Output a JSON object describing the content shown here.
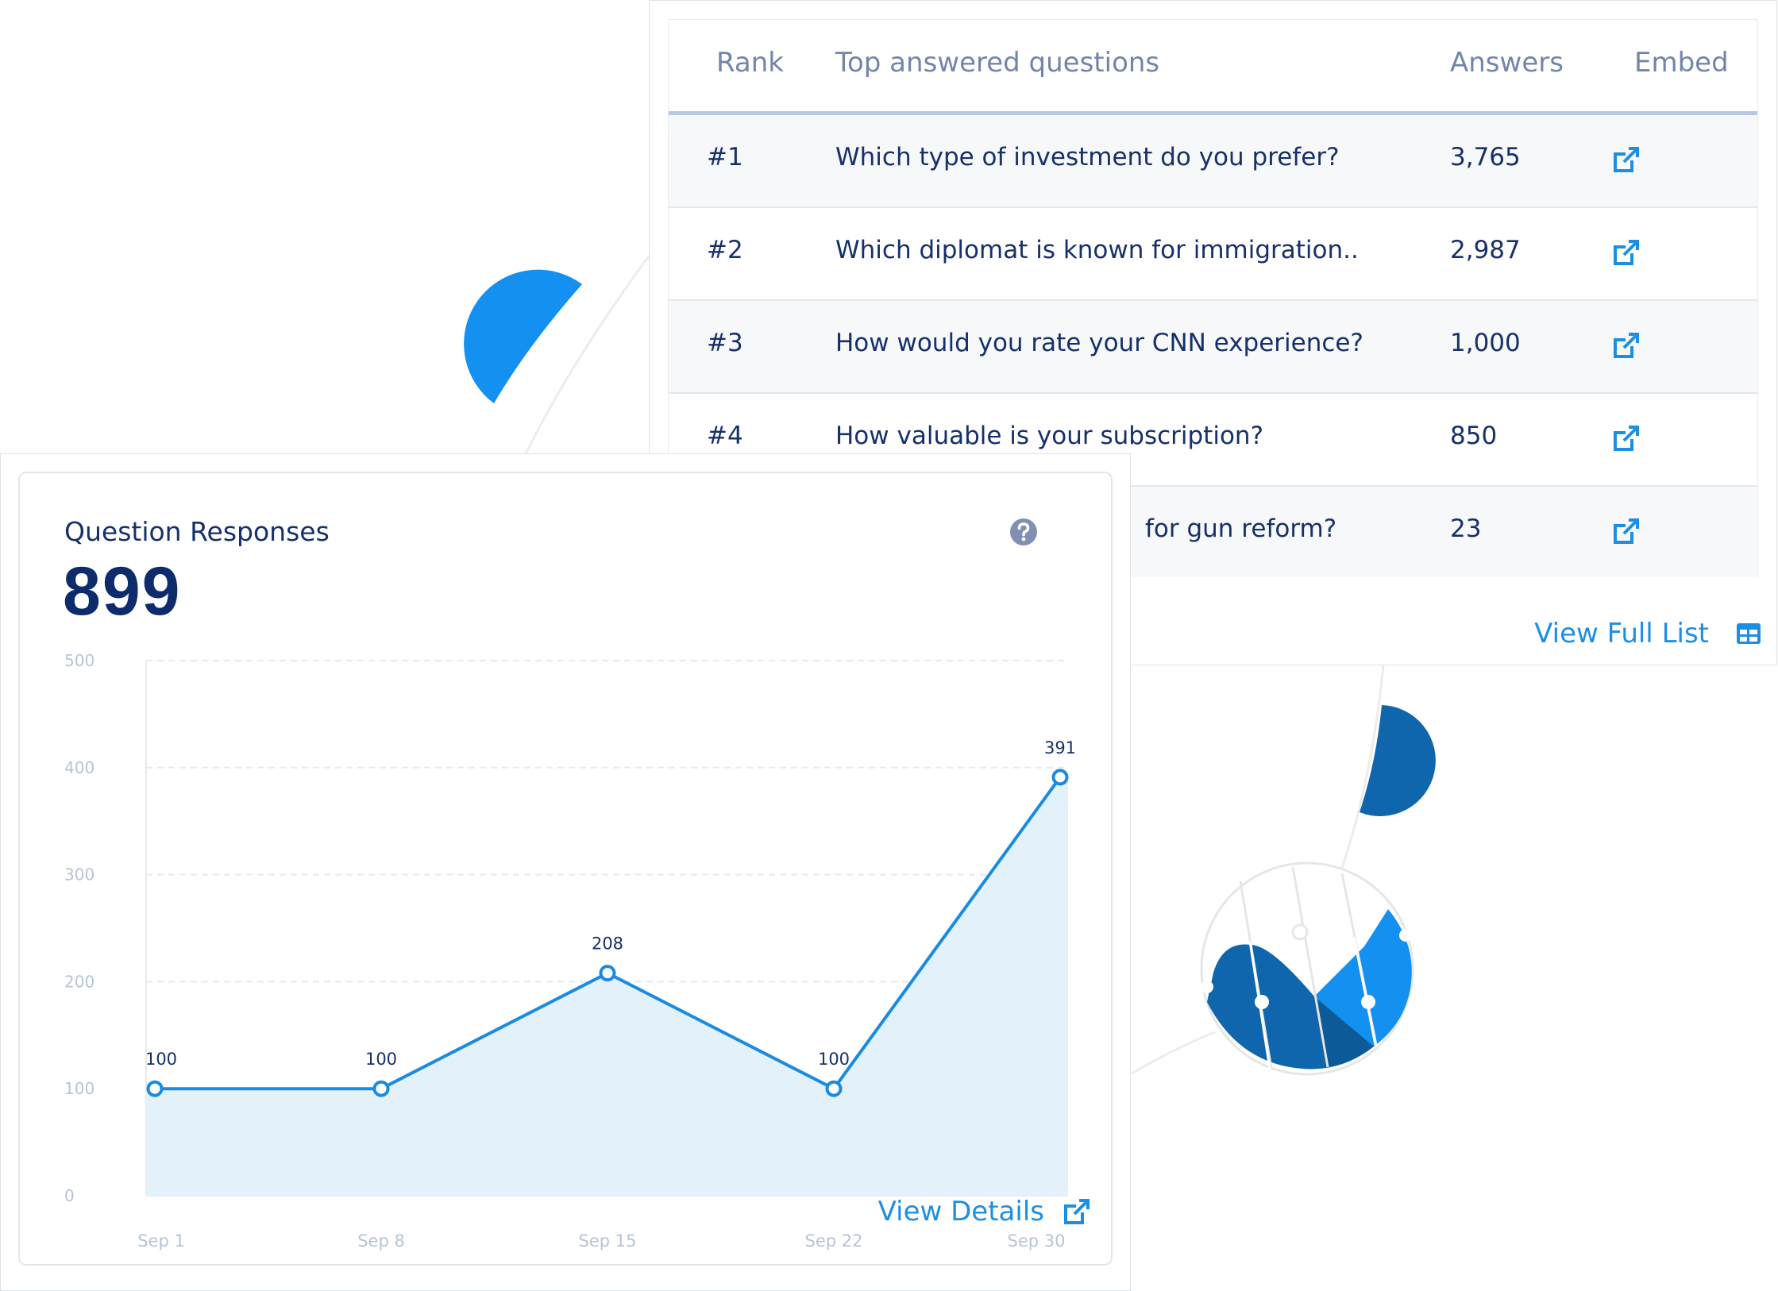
{
  "table": {
    "headers": {
      "rank": "Rank",
      "question": "Top answered questions",
      "answers": "Answers",
      "embed": "Embed"
    },
    "rows": [
      {
        "rank": "#1",
        "question": "Which type of investment do you prefer?",
        "answers": "3,765",
        "embed_icon": "external-link-icon"
      },
      {
        "rank": "#2",
        "question": "Which diplomat is known for immigration..",
        "answers": "2,987",
        "embed_icon": "external-link-icon"
      },
      {
        "rank": "#3",
        "question": "How would you rate your CNN experience?",
        "answers": "1,000",
        "embed_icon": "external-link-icon"
      },
      {
        "rank": "#4",
        "question": "How valuable is your subscription?",
        "answers": "850",
        "embed_icon": "external-link-icon"
      },
      {
        "rank": "",
        "question": "for gun reform?",
        "answers": "23",
        "embed_icon": "external-link-icon"
      }
    ],
    "view_full_label": "View Full List",
    "view_full_icon": "table-icon"
  },
  "card": {
    "title": "Question Responses",
    "value": "899",
    "help_icon": "question-circle-icon",
    "view_details_label": "View Details",
    "view_details_icon": "external-link-icon"
  },
  "colors": {
    "accent": "#1d8fe2",
    "line": "#1a8be0",
    "area": "#e3f1fb",
    "dark_blue": "#0e2b6b",
    "deco_light": "#1390f0",
    "deco_dark": "#0f66ad"
  },
  "chart_data": {
    "type": "area",
    "categories": [
      "Sep 1",
      "Sep 8",
      "Sep 15",
      "Sep 22",
      "Sep 30"
    ],
    "values": [
      100,
      100,
      208,
      100,
      391
    ],
    "data_labels": [
      "100",
      "100",
      "208",
      "100",
      "391"
    ],
    "y_ticks": [
      0,
      100,
      200,
      300,
      400,
      500
    ],
    "ylim": [
      0,
      500
    ],
    "grid": true,
    "markers": "hollow-circle"
  }
}
